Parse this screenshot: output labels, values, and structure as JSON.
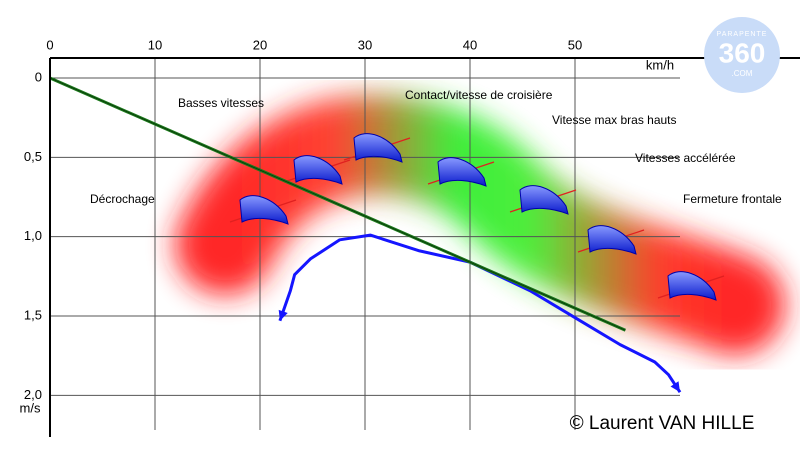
{
  "chart_data": {
    "type": "line",
    "xlim": [
      0,
      70
    ],
    "xticks": [
      0,
      10,
      20,
      30,
      40,
      50
    ],
    "x_label": "km/h",
    "ylim": [
      0,
      2.25
    ],
    "yticks": [
      0,
      {
        "value": 0.5,
        "label": "0,5"
      },
      {
        "value": 1,
        "label": "1,0"
      },
      {
        "value": 1.5,
        "label": "1,5"
      },
      {
        "value": 2,
        "label": "2,0"
      }
    ],
    "y_label": "m/s",
    "grid": true,
    "series": [
      {
        "color": "#1515ff",
        "x": [
          21.9,
          22.9,
          23.3,
          24.8,
          27.6,
          30.5,
          35.2,
          40,
          45.7,
          50.5,
          54.3,
          57.6,
          58.9,
          60
        ],
        "values": [
          1.53,
          1.34,
          1.24,
          1.14,
          1.02,
          0.99,
          1.09,
          1.16,
          1.34,
          1.53,
          1.68,
          1.79,
          1.87,
          1.98
        ]
      },
      {
        "color": "#1a7a1a",
        "x": [
          0,
          54.8
        ],
        "values": [
          0,
          1.59
        ]
      }
    ],
    "annotations": [
      "Basses vitesses",
      "Contact/vitesse de croisière",
      "Vitesse max bras hauts",
      "Vitesses accélérée",
      "Décrochage",
      "Fermeture frontale"
    ],
    "copyright": "© Laurent VAN HILLE"
  },
  "logo": {
    "top": "PARAPENTE",
    "main": "360",
    "bottom": ".COM"
  }
}
